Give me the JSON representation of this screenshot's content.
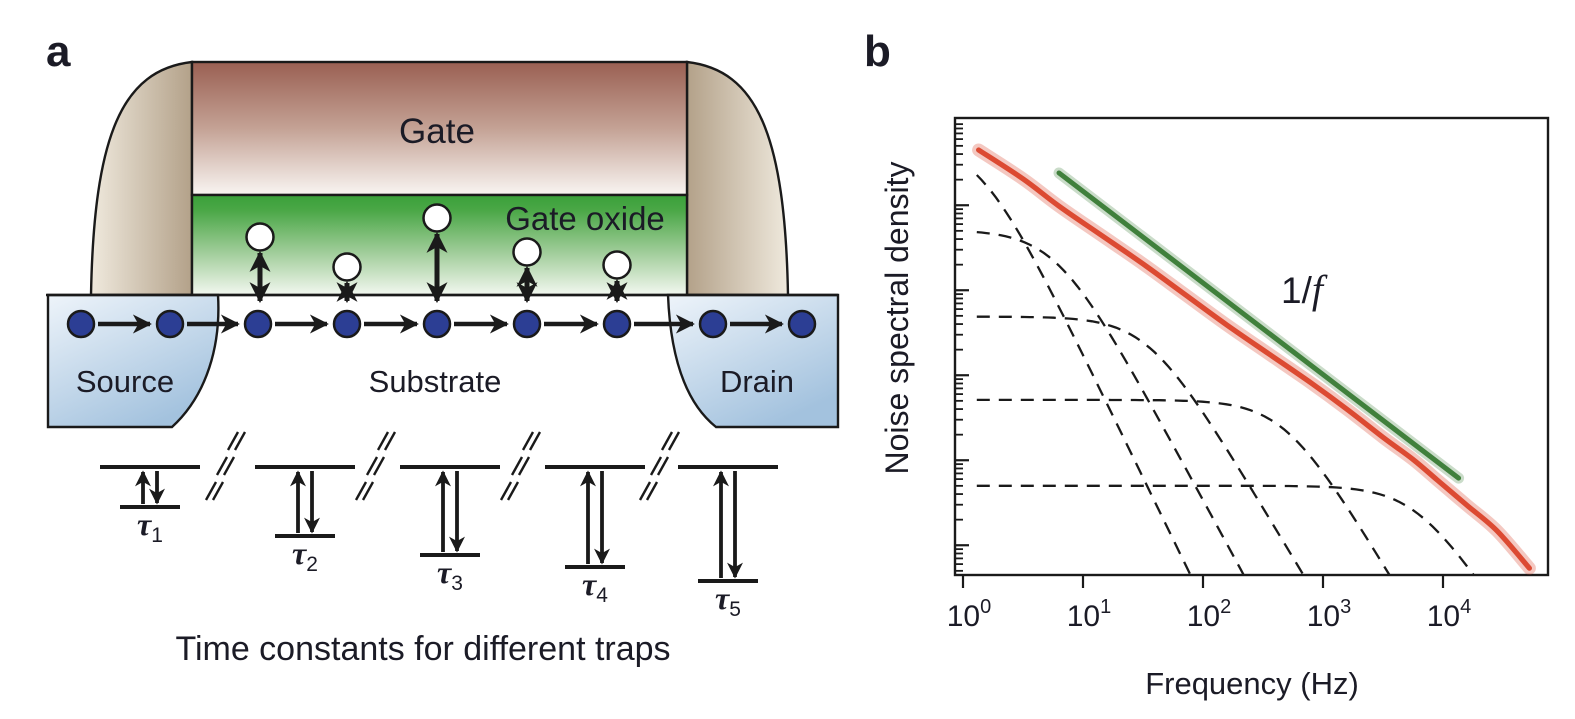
{
  "figure": {
    "panel_a": {
      "label": "a",
      "regions": {
        "gate": "Gate",
        "gate_oxide": "Gate oxide",
        "source": "Source",
        "substrate": "Substrate",
        "drain": "Drain"
      },
      "tau_labels": [
        {
          "sym": "τ",
          "sub": "1"
        },
        {
          "sym": "τ",
          "sub": "2"
        },
        {
          "sym": "τ",
          "sub": "3"
        },
        {
          "sym": "τ",
          "sub": "4"
        },
        {
          "sym": "τ",
          "sub": "5"
        }
      ],
      "caption": "Time constants for different traps",
      "electron_count": 9,
      "trap_count": 5
    },
    "panel_b": {
      "label": "b"
    }
  },
  "chart_data": {
    "type": "line",
    "xlabel": "Frequency (Hz)",
    "ylabel": "Noise spectral density",
    "x_scale": "log",
    "y_scale": "log",
    "x_ticks": [
      {
        "base": "10",
        "exp": "0"
      },
      {
        "base": "10",
        "exp": "1"
      },
      {
        "base": "10",
        "exp": "2"
      },
      {
        "base": "10",
        "exp": "3"
      },
      {
        "base": "10",
        "exp": "4"
      }
    ],
    "x_range_log10_hz": [
      -0.07,
      4.86
    ],
    "y_range_log10_arb": [
      0,
      5.38
    ],
    "annotation": {
      "numerator": "1/",
      "italic": "f"
    },
    "series": [
      {
        "name": "total noise (sum of trap Lorentzians)",
        "color": "#dc4a32",
        "style": "solid",
        "log_points": [
          [
            0.13,
            5.0
          ],
          [
            0.5,
            4.66
          ],
          [
            0.8,
            4.34
          ],
          [
            1.15,
            4.0
          ],
          [
            1.5,
            3.66
          ],
          [
            1.85,
            3.3
          ],
          [
            2.2,
            2.94
          ],
          [
            2.55,
            2.6
          ],
          [
            2.9,
            2.26
          ],
          [
            3.2,
            1.95
          ],
          [
            3.5,
            1.62
          ],
          [
            3.75,
            1.36
          ],
          [
            3.95,
            1.12
          ],
          [
            4.2,
            0.82
          ],
          [
            4.45,
            0.52
          ],
          [
            4.72,
            0.08
          ]
        ]
      },
      {
        "name": "1/f reference line",
        "color": "#40803c",
        "style": "solid",
        "log_points": [
          [
            0.8,
            4.73
          ],
          [
            4.13,
            1.14
          ]
        ]
      },
      {
        "name": "individual trap Lorentzians",
        "color": "#1a1a1a",
        "style": "dashed",
        "lorentzians": [
          {
            "plateau_log10": 5.12,
            "corner_hz": 1.35,
            "rolloff_decades_per_decade": 2.9
          },
          {
            "plateau_log10": 4.06,
            "corner_hz": 6.0,
            "rolloff_decades_per_decade": 2.6
          },
          {
            "plateau_log10": 3.04,
            "corner_hz": 35,
            "rolloff_decades_per_decade": 2.35
          },
          {
            "plateau_log10": 2.06,
            "corner_hz": 480,
            "rolloff_decades_per_decade": 2.35
          },
          {
            "plateau_log10": 1.05,
            "corner_hz": 6000,
            "rolloff_decades_per_decade": 2.1
          }
        ]
      }
    ]
  },
  "colors": {
    "red_curve": "#dc4a32",
    "green_line": "#40803c",
    "electron_blue": "#2c3e94",
    "oxide_green": "#3fa23c",
    "gate_brown": "#9a5f52",
    "dome_tan": "#b3a189",
    "contact_blue": "#a3c2de",
    "text": "#1b1b26"
  }
}
